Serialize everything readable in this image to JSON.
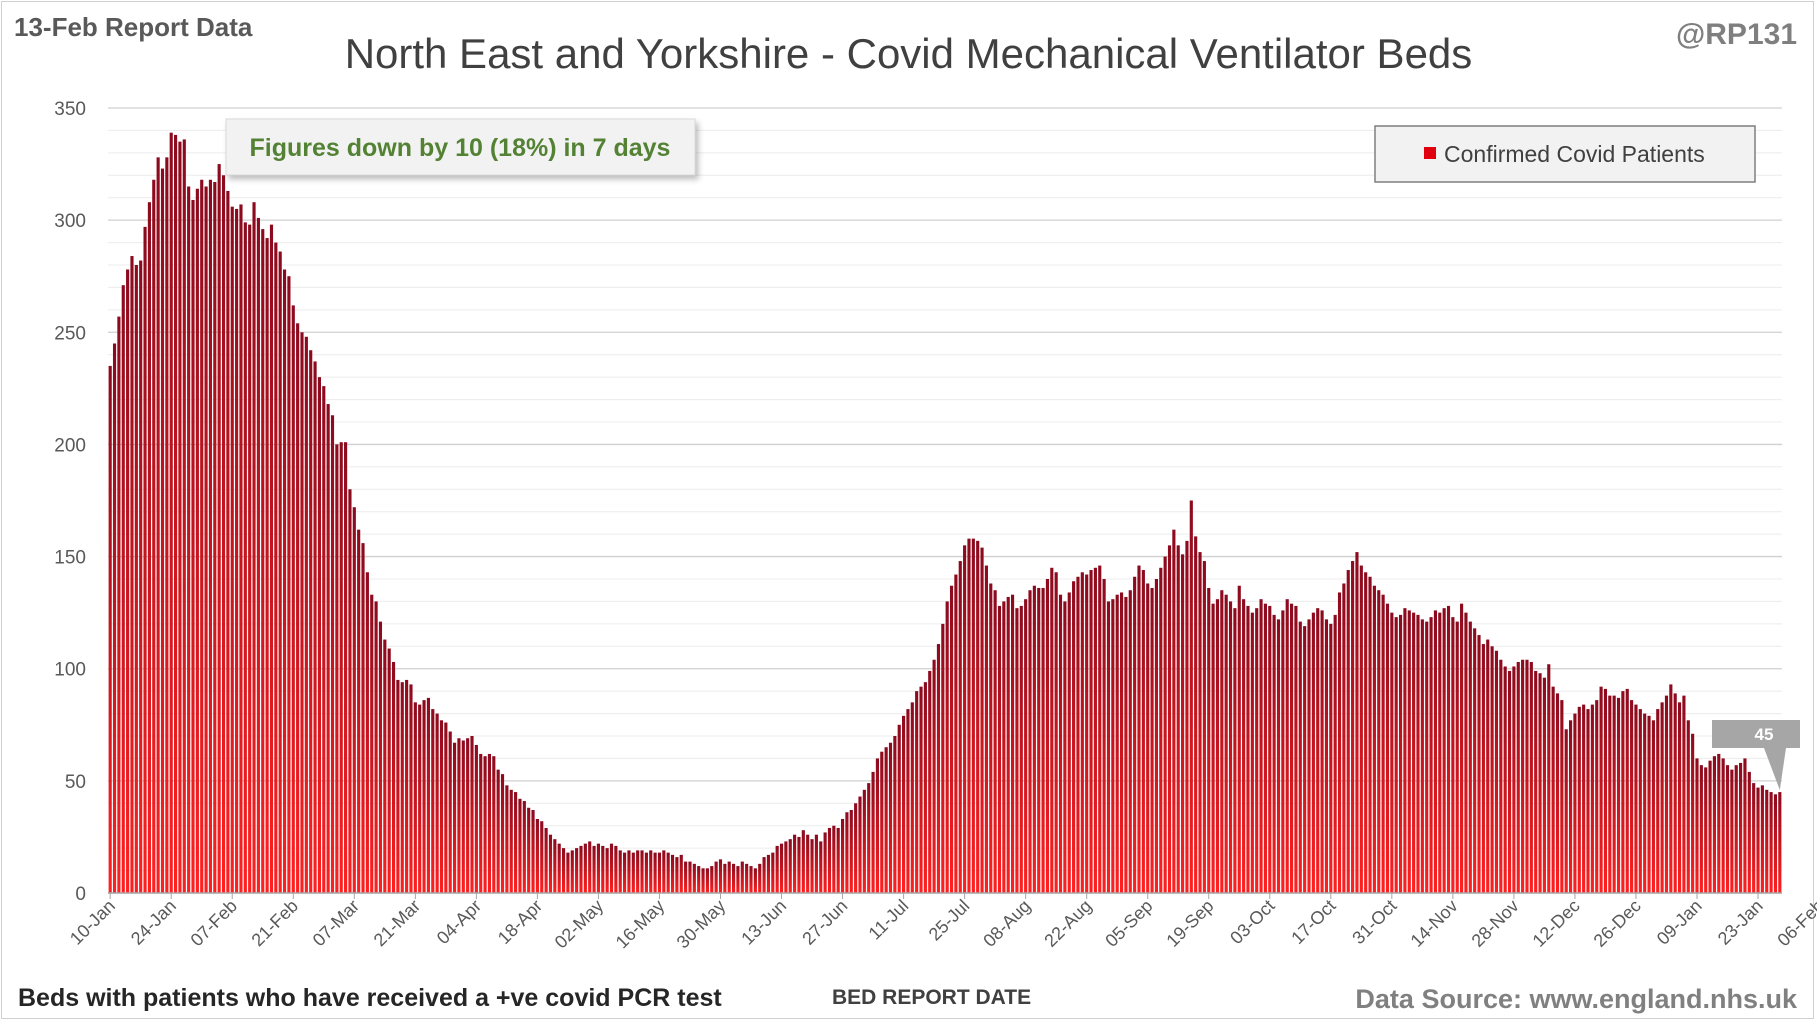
{
  "header": {
    "report_label": "13-Feb Report Data",
    "handle": "@RP131",
    "title": "North East and Yorkshire - Covid Mechanical Ventilator Beds"
  },
  "footer": {
    "note": "Beds with patients who have received a +ve covid PCR test",
    "x_axis_title": "BED REPORT DATE",
    "source": "Data Source: www.england.nhs.uk"
  },
  "annotation": {
    "text": "Figures down by 10 (18%) in 7 days"
  },
  "callout": {
    "text": "45"
  },
  "colors": {
    "bar_top": "#8b0a1e",
    "bar_bottom": "#ff2020",
    "annotation_text": "#548235",
    "gridline": "#d9d9d9",
    "callout_fill": "#a6a6a6"
  },
  "chart_data": {
    "type": "bar",
    "title": "North East and Yorkshire - Covid Mechanical Ventilator Beds",
    "xlabel": "BED REPORT DATE",
    "ylabel": "",
    "ylim": [
      0,
      350
    ],
    "yticks": [
      0,
      50,
      100,
      150,
      200,
      250,
      300,
      350
    ],
    "grid": true,
    "legend": {
      "position": "top-right",
      "entries": [
        "Confirmed Covid Patients"
      ]
    },
    "x_start": "10-Jan",
    "x_tick_every": 14,
    "xticks": [
      "10-Jan",
      "24-Jan",
      "07-Feb",
      "21-Feb",
      "07-Mar",
      "21-Mar",
      "04-Apr",
      "18-Apr",
      "02-May",
      "16-May",
      "30-May",
      "13-Jun",
      "27-Jun",
      "11-Jul",
      "25-Jul",
      "08-Aug",
      "22-Aug",
      "05-Sep",
      "19-Sep",
      "03-Oct",
      "17-Oct",
      "31-Oct",
      "14-Nov",
      "28-Nov",
      "12-Dec",
      "26-Dec",
      "09-Jan",
      "23-Jan",
      "06-Feb"
    ],
    "series": [
      {
        "name": "Confirmed Covid Patients",
        "values": [
          235,
          245,
          257,
          271,
          278,
          284,
          280,
          282,
          297,
          308,
          318,
          328,
          323,
          328,
          339,
          338,
          335,
          336,
          315,
          309,
          314,
          318,
          315,
          318,
          317,
          325,
          320,
          313,
          306,
          305,
          307,
          299,
          298,
          308,
          301,
          296,
          292,
          298,
          290,
          286,
          278,
          275,
          262,
          254,
          250,
          248,
          242,
          237,
          230,
          226,
          218,
          213,
          200,
          201,
          201,
          180,
          172,
          162,
          156,
          143,
          133,
          130,
          121,
          113,
          109,
          103,
          95,
          94,
          95,
          93,
          85,
          84,
          86,
          87,
          82,
          80,
          77,
          76,
          72,
          67,
          69,
          68,
          69,
          70,
          66,
          62,
          61,
          62,
          61,
          55,
          53,
          48,
          46,
          45,
          42,
          41,
          38,
          37,
          33,
          32,
          29,
          26,
          24,
          22,
          20,
          18,
          19,
          20,
          21,
          22,
          23,
          21,
          22,
          21,
          20,
          22,
          21,
          19,
          18,
          19,
          18,
          19,
          19,
          18,
          19,
          18,
          18,
          19,
          18,
          17,
          16,
          17,
          14,
          14,
          13,
          12,
          11,
          11,
          12,
          14,
          15,
          13,
          14,
          13,
          12,
          14,
          13,
          12,
          11,
          13,
          16,
          17,
          18,
          21,
          22,
          23,
          24,
          26,
          25,
          28,
          26,
          24,
          26,
          23,
          27,
          29,
          30,
          29,
          33,
          36,
          37,
          40,
          43,
          46,
          49,
          54,
          60,
          63,
          65,
          67,
          70,
          75,
          79,
          82,
          85,
          90,
          92,
          94,
          99,
          104,
          111,
          120,
          130,
          137,
          142,
          148,
          155,
          158,
          158,
          157,
          154,
          146,
          138,
          135,
          128,
          130,
          132,
          133,
          127,
          128,
          131,
          135,
          137,
          136,
          136,
          140,
          145,
          143,
          133,
          130,
          134,
          139,
          141,
          143,
          142,
          144,
          145,
          146,
          140,
          130,
          131,
          133,
          134,
          132,
          135,
          141,
          146,
          144,
          138,
          136,
          140,
          145,
          150,
          155,
          162,
          155,
          151,
          157,
          175,
          159,
          152,
          148,
          136,
          129,
          131,
          135,
          133,
          130,
          127,
          137,
          131,
          128,
          125,
          127,
          131,
          129,
          128,
          124,
          122,
          126,
          131,
          129,
          128,
          121,
          119,
          122,
          125,
          127,
          126,
          122,
          120,
          124,
          134,
          138,
          144,
          148,
          152,
          146,
          143,
          141,
          137,
          135,
          133,
          129,
          125,
          123,
          124,
          127,
          126,
          125,
          124,
          122,
          121,
          123,
          126,
          125,
          127,
          128,
          123,
          121,
          129,
          125,
          121,
          118,
          115,
          111,
          113,
          110,
          108,
          104,
          101,
          99,
          101,
          103,
          104,
          104,
          103,
          99,
          98,
          96,
          102,
          92,
          89,
          86,
          73,
          77,
          80,
          83,
          84,
          82,
          84,
          86,
          92,
          91,
          88,
          88,
          87,
          90,
          91,
          86,
          84,
          82,
          80,
          79,
          77,
          82,
          85,
          88,
          93,
          89,
          85,
          88,
          77,
          71,
          60,
          57,
          56,
          59,
          61,
          62,
          60,
          57,
          55,
          57,
          58,
          60,
          54,
          49,
          47,
          48,
          46,
          45,
          44,
          45
        ]
      }
    ]
  }
}
